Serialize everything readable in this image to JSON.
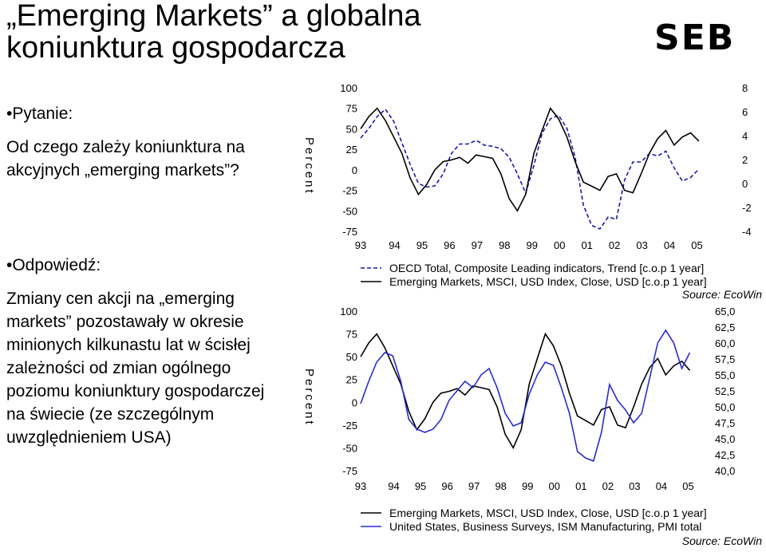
{
  "slide": {
    "title_line1": "„Emerging Markets” a globalna",
    "title_line2": "koniunktura gospodarcza",
    "logo": "SEB",
    "question_label": "•Pytanie:",
    "question_text": "Od czego zależy koniunktura na akcyjnych „emerging markets”?",
    "answer_label": "•Odpowiedź:",
    "answer_text": "Zmiany cen akcji na „emerging markets” pozostawały w okresie minionych kilkunastu lat w ścisłej zależności od zmian ogólnego poziomu koniunktury gospodarczej na świecie (ze szczególnym uwzględnieniem USA)"
  },
  "colors": {
    "black": "#000000",
    "navy": "#1a1aa6",
    "blue": "#2a2ad0"
  },
  "chart_data": [
    {
      "type": "line",
      "ylabel": "Percent",
      "x_ticks": [
        "93",
        "94",
        "95",
        "96",
        "97",
        "98",
        "99",
        "00",
        "01",
        "02",
        "03",
        "04",
        "05"
      ],
      "x_range": [
        1993.0,
        2006.0
      ],
      "ylim_left": [
        -75,
        100
      ],
      "yticks_left": [
        "100",
        "75",
        "50",
        "25",
        "0",
        "-25",
        "-50",
        "-75"
      ],
      "ylim_right": [
        -4,
        8
      ],
      "yticks_right": [
        "8",
        "6",
        "4",
        "2",
        "0",
        "-2",
        "-4"
      ],
      "source": "Source: EcoWin",
      "series": [
        {
          "name": "OECD Total, Composite Leading indicators, Trend [c.o.p 1 year]",
          "axis": "right",
          "style": "dashed",
          "x": [
            1993.0,
            1993.3,
            1993.6,
            1993.9,
            1994.2,
            1994.5,
            1994.8,
            1995.1,
            1995.4,
            1995.7,
            1996.0,
            1996.3,
            1996.6,
            1996.9,
            1997.2,
            1997.5,
            1997.8,
            1998.1,
            1998.4,
            1998.7,
            1999.0,
            1999.3,
            1999.6,
            1999.9,
            2000.2,
            2000.5,
            2000.8,
            2001.1,
            2001.4,
            2001.7,
            2002.0,
            2002.3,
            2002.6,
            2002.9,
            2003.2,
            2003.5,
            2003.8,
            2004.1,
            2004.4,
            2004.7,
            2005.0,
            2005.3
          ],
          "y": [
            3.8,
            4.6,
            5.6,
            6.2,
            5.2,
            3.4,
            1.6,
            0.0,
            -0.3,
            -0.2,
            0.8,
            2.5,
            3.3,
            3.3,
            3.6,
            3.2,
            3.1,
            2.9,
            2.2,
            0.8,
            -0.8,
            1.5,
            4.2,
            5.4,
            5.7,
            4.6,
            2.2,
            -1.8,
            -3.5,
            -3.8,
            -2.8,
            -3.0,
            0.3,
            1.8,
            1.8,
            2.5,
            2.3,
            2.7,
            1.3,
            0.2,
            0.5,
            1.2
          ]
        },
        {
          "name": "Emerging Markets, MSCI, USD Index, Close, USD [c.o.p 1 year]",
          "axis": "left",
          "style": "solid",
          "x": [
            1993.0,
            1993.3,
            1993.6,
            1993.9,
            1994.2,
            1994.5,
            1994.8,
            1995.1,
            1995.4,
            1995.7,
            1996.0,
            1996.3,
            1996.6,
            1996.9,
            1997.2,
            1997.5,
            1997.8,
            1998.1,
            1998.4,
            1998.7,
            1999.0,
            1999.3,
            1999.6,
            1999.9,
            2000.2,
            2000.5,
            2000.8,
            2001.1,
            2001.4,
            2001.7,
            2002.0,
            2002.3,
            2002.6,
            2002.9,
            2003.2,
            2003.5,
            2003.8,
            2004.1,
            2004.4,
            2004.7,
            2005.0,
            2005.3
          ],
          "y": [
            50,
            65,
            75,
            60,
            40,
            20,
            -10,
            -30,
            -18,
            0,
            10,
            12,
            15,
            8,
            18,
            16,
            14,
            -5,
            -35,
            -50,
            -30,
            20,
            48,
            75,
            62,
            40,
            10,
            -15,
            -20,
            -25,
            -8,
            -5,
            -25,
            -28,
            -5,
            20,
            38,
            48,
            30,
            40,
            45,
            35
          ]
        }
      ]
    },
    {
      "type": "line",
      "ylabel": "Percent",
      "x_ticks": [
        "93",
        "94",
        "95",
        "96",
        "97",
        "98",
        "99",
        "00",
        "01",
        "02",
        "03",
        "04",
        "05"
      ],
      "x_range": [
        1993.0,
        2006.0
      ],
      "ylim_left": [
        -75,
        100
      ],
      "yticks_left": [
        "100",
        "75",
        "50",
        "25",
        "0",
        "-25",
        "-50",
        "-75"
      ],
      "ylim_right": [
        40.0,
        65.0
      ],
      "yticks_right": [
        "65,0",
        "62,5",
        "60,0",
        "57,5",
        "55,0",
        "52,5",
        "50,0",
        "47,5",
        "45,0",
        "42,5",
        "40,0"
      ],
      "source": "Source: EcoWin",
      "series": [
        {
          "name": "Emerging Markets, MSCI, USD Index, Close, USD [c.o.p 1 year]",
          "axis": "left",
          "style": "solid",
          "x": [
            1993.0,
            1993.3,
            1993.6,
            1993.9,
            1994.2,
            1994.5,
            1994.8,
            1995.1,
            1995.4,
            1995.7,
            1996.0,
            1996.3,
            1996.6,
            1996.9,
            1997.2,
            1997.5,
            1997.8,
            1998.1,
            1998.4,
            1998.7,
            1999.0,
            1999.3,
            1999.6,
            1999.9,
            2000.2,
            2000.5,
            2000.8,
            2001.1,
            2001.4,
            2001.7,
            2002.0,
            2002.3,
            2002.6,
            2002.9,
            2003.2,
            2003.5,
            2003.8,
            2004.1,
            2004.4,
            2004.7,
            2005.0,
            2005.3
          ],
          "y": [
            50,
            65,
            75,
            60,
            40,
            20,
            -10,
            -30,
            -18,
            0,
            10,
            12,
            15,
            8,
            18,
            16,
            14,
            -5,
            -35,
            -50,
            -30,
            20,
            48,
            75,
            62,
            40,
            10,
            -15,
            -20,
            -25,
            -8,
            -5,
            -25,
            -28,
            -5,
            20,
            38,
            48,
            30,
            40,
            45,
            35
          ]
        },
        {
          "name": "United States, Business Surveys, ISM Manufacturing, PMI total",
          "axis": "right",
          "style": "solid",
          "x": [
            1993.0,
            1993.3,
            1993.6,
            1993.9,
            1994.2,
            1994.5,
            1994.8,
            1995.1,
            1995.4,
            1995.7,
            1996.0,
            1996.3,
            1996.6,
            1996.9,
            1997.2,
            1997.5,
            1997.8,
            1998.1,
            1998.4,
            1998.7,
            1999.0,
            1999.3,
            1999.6,
            1999.9,
            2000.2,
            2000.5,
            2000.8,
            2001.1,
            2001.4,
            2001.7,
            2002.0,
            2002.3,
            2002.6,
            2002.9,
            2003.2,
            2003.5,
            2003.8,
            2004.1,
            2004.4,
            2004.7,
            2005.0,
            2005.3
          ],
          "y": [
            50.5,
            54.0,
            57.0,
            58.5,
            58.0,
            54.0,
            48.0,
            46.5,
            46.0,
            46.5,
            48.0,
            51.0,
            52.5,
            54.0,
            53.0,
            55.0,
            56.0,
            53.0,
            49.0,
            47.0,
            47.5,
            52.0,
            55.0,
            57.0,
            56.5,
            53.0,
            49.0,
            43.0,
            42.0,
            41.5,
            46.0,
            53.5,
            51.0,
            49.5,
            47.5,
            49.0,
            54.5,
            60.0,
            62.0,
            60.0,
            56.0,
            58.5
          ]
        }
      ]
    }
  ]
}
